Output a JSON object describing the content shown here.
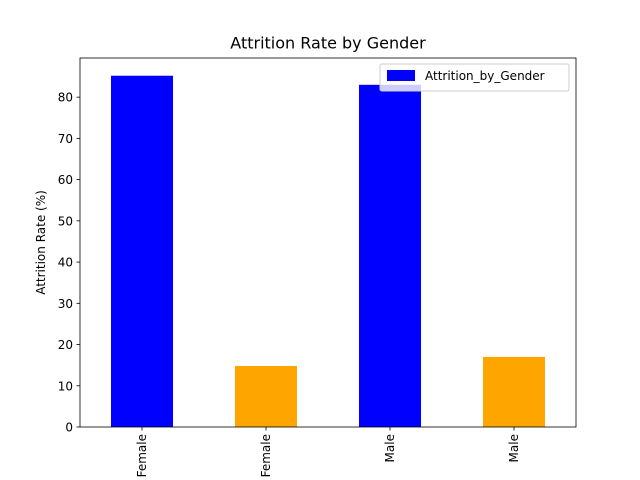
{
  "chart_data": {
    "type": "bar",
    "title": "Attrition Rate by Gender",
    "xlabel": "",
    "ylabel": "Attrition Rate (%)",
    "categories": [
      "Female",
      "Female",
      "Male",
      "Male"
    ],
    "values": [
      85.2,
      14.8,
      83.0,
      17.0
    ],
    "bar_colors": [
      "#0000ff",
      "#ffa500",
      "#0000ff",
      "#ffa500"
    ],
    "ylim": [
      0,
      89.5
    ],
    "yticks": [
      0,
      10,
      20,
      30,
      40,
      50,
      60,
      70,
      80
    ],
    "grid": false,
    "legend": {
      "entries": [
        {
          "label": "Attrition_by_Gender",
          "color": "#0000ff"
        }
      ],
      "placement": "top-right"
    }
  }
}
